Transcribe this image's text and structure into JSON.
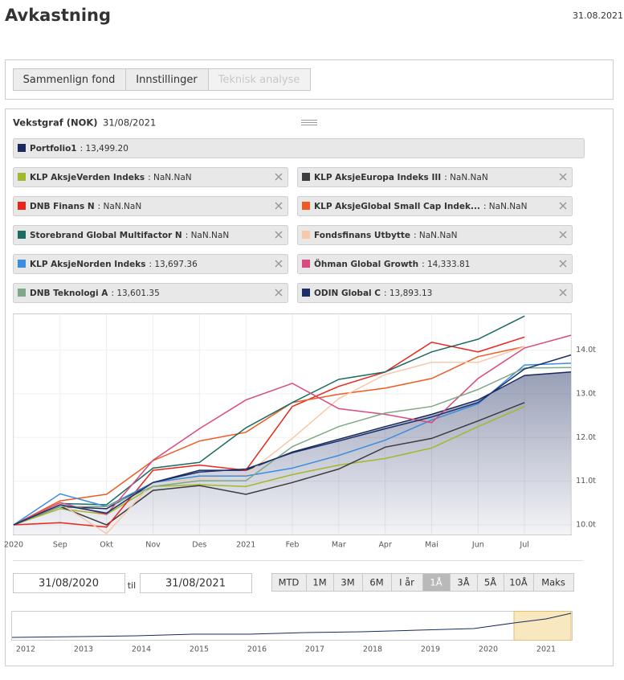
{
  "header": {
    "title": "Avkastning",
    "date": "31.08.2021"
  },
  "tabs": [
    "Sammenlign fond",
    "Innstillinger",
    "Teknisk analyse"
  ],
  "panel": {
    "title": "Vekstgraf (NOK)",
    "date": "31/08/2021"
  },
  "chart_data": {
    "type": "line",
    "categories": [
      "2020",
      "Sep",
      "Okt",
      "Nov",
      "Des",
      "2021",
      "Feb",
      "Mar",
      "Apr",
      "Mai",
      "Jun",
      "Jul",
      null
    ],
    "ylim": [
      9.78,
      14.82
    ],
    "yticks": [
      {
        "value": 10,
        "label": "10.0t"
      },
      {
        "value": 11,
        "label": "11.0t"
      },
      {
        "value": 12,
        "label": "12.0t"
      },
      {
        "value": 13,
        "label": "13.0t"
      },
      {
        "value": 14,
        "label": "14.0t"
      }
    ],
    "grid": true,
    "series": [
      {
        "name": "Portfolio1",
        "value_label": ": 13,499.20",
        "color": "#1b2a5e",
        "style": "area",
        "values": [
          10,
          10.42,
          10.37,
          10.97,
          11.25,
          11.25,
          11.67,
          11.96,
          12.25,
          12.53,
          12.86,
          13.42,
          13.5
        ]
      },
      {
        "name": "KLP AksjeVerden Indeks",
        "value_label": ": NaN.NaN",
        "color": "#a3b82a",
        "values": [
          10,
          10.37,
          10.24,
          10.88,
          10.92,
          10.88,
          11.15,
          11.37,
          11.52,
          11.76,
          12.25,
          12.71,
          null
        ]
      },
      {
        "name": "KLP AksjeEuropa Indeks III",
        "value_label": ": NaN.NaN",
        "color": "#3d3a40",
        "values": [
          10,
          10.42,
          10,
          10.79,
          10.9,
          10.7,
          10.97,
          11.28,
          11.78,
          11.98,
          12.38,
          12.8,
          null
        ]
      },
      {
        "name": "DNB Finans N",
        "value_label": ": NaN.NaN",
        "color": "#e8261c",
        "values": [
          10,
          10.05,
          9.95,
          11.25,
          11.37,
          11.25,
          12.71,
          13.17,
          13.5,
          14.18,
          13.96,
          14.3,
          null
        ]
      },
      {
        "name": "KLP AksjeGlobal Small Cap Indek...",
        "value_label": ": NaN.NaN",
        "color": "#f05a22",
        "values": [
          10,
          10.55,
          10.7,
          11.47,
          11.92,
          12.12,
          12.8,
          12.99,
          13.13,
          13.35,
          13.85,
          14.08,
          null
        ]
      },
      {
        "name": "Storebrand Global Multifactor N",
        "value_label": ": NaN.NaN",
        "color": "#1e6b61",
        "values": [
          10,
          10.49,
          10.46,
          11.3,
          11.43,
          12.22,
          12.8,
          13.33,
          13.5,
          13.96,
          14.25,
          14.78,
          null
        ]
      },
      {
        "name": "Fondsfinans Utbytte",
        "value_label": ": NaN.NaN",
        "color": "#f6c9a8",
        "values": [
          10,
          10.49,
          9.8,
          10.97,
          11.06,
          11.15,
          11.98,
          12.89,
          13.44,
          13.72,
          13.72,
          14.08,
          null
        ]
      },
      {
        "name": "KLP AksjeNorden Indeks",
        "value_label": ": 13,697.36",
        "color": "#3b8de0",
        "values": [
          10,
          10.71,
          10.42,
          10.97,
          11.12,
          11.12,
          11.3,
          11.59,
          11.94,
          12.4,
          12.77,
          13.66,
          13.7
        ]
      },
      {
        "name": "Öhman Global Growth",
        "value_label": ": 14,333.81",
        "color": "#d94b7e",
        "values": [
          10,
          10.51,
          10.24,
          11.48,
          12.2,
          12.86,
          13.24,
          12.66,
          12.53,
          12.34,
          13.35,
          14.05,
          14.34
        ]
      },
      {
        "name": "DNB Teknologi A",
        "value_label": ": 13,601.35",
        "color": "#7fa886",
        "values": [
          10,
          10.42,
          10.42,
          10.88,
          11.01,
          11.01,
          11.79,
          12.25,
          12.56,
          12.71,
          13.1,
          13.59,
          13.6
        ]
      },
      {
        "name": "ODIN Global C",
        "value_label": ": 13,893.13",
        "color": "#1b2f6b",
        "values": [
          10,
          10.46,
          10.27,
          10.97,
          11.21,
          11.28,
          11.65,
          11.92,
          12.2,
          12.47,
          12.8,
          13.57,
          13.89
        ]
      }
    ]
  },
  "range": {
    "from": "31/08/2020",
    "til": "til",
    "to": "31/08/2021",
    "buttons": [
      "MTD",
      "1M",
      "3M",
      "6M",
      "I år",
      "1Å",
      "3Å",
      "5Å",
      "10Å",
      "Maks"
    ],
    "active": 5
  },
  "navigator": {
    "years": [
      "2012",
      "2013",
      "2014",
      "2015",
      "2016",
      "2017",
      "2018",
      "2019",
      "2020",
      "2021"
    ]
  }
}
